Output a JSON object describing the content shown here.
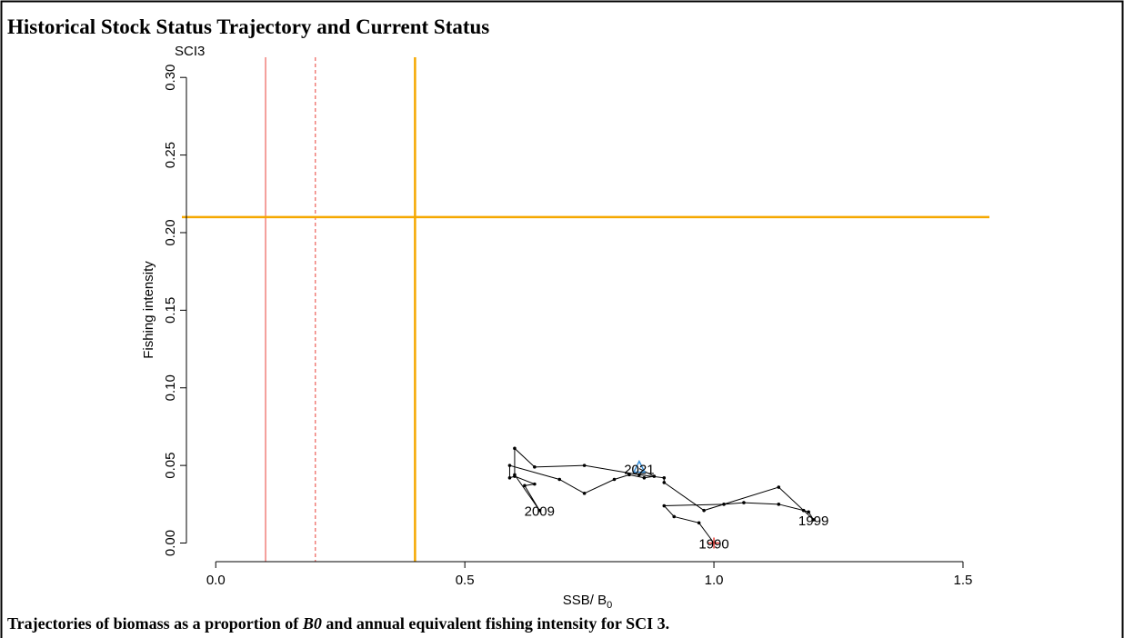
{
  "chart_data": {
    "type": "trajectory",
    "title": "Historical Stock Status Trajectory and Current Status",
    "panel_label": "SCI3",
    "x_label": "SSB/ B",
    "x_label_sub": "0",
    "y_label": "Fishing intensity",
    "caption_parts": [
      "Trajectories of biomass as a proportion of ",
      "B0",
      " and annual equivalent fishing intensity for SCI 3."
    ],
    "xlim": [
      -0.068,
      1.553
    ],
    "ylim": [
      -0.012,
      0.313
    ],
    "xticks": [
      {
        "value": 0,
        "label": "0.0"
      },
      0.5,
      {
        "value": 1,
        "label": "1.0"
      },
      1.5
    ],
    "yticks": [
      {
        "value": 0,
        "label": "0.00"
      },
      0.05,
      {
        "value": 0.1,
        "label": "0.10"
      },
      0.15,
      {
        "value": 0.2,
        "label": "0.20"
      },
      0.25,
      {
        "value": 0.3,
        "label": "0.30"
      }
    ],
    "reference_lines": [
      {
        "axis": "x",
        "value": 0.1,
        "color": "#e8413a",
        "dashed": false,
        "width": 1
      },
      {
        "axis": "x",
        "value": 0.2,
        "color": "#e8413a",
        "dashed": true,
        "width": 1
      },
      {
        "axis": "x",
        "value": 0.4,
        "color": "#f5a800",
        "dashed": false,
        "width": 2.5
      },
      {
        "axis": "y",
        "value": 0.21,
        "color": "#f5a800",
        "dashed": false,
        "width": 2.5
      }
    ],
    "series": [
      {
        "color": "#000000",
        "start_color": "#e8413a",
        "end_color": "#3a8fd8",
        "x": [
          1.0,
          0.97,
          0.92,
          0.9,
          1.02,
          1.06,
          1.13,
          1.18,
          1.19,
          1.2,
          1.13,
          0.98,
          0.9,
          0.9,
          0.85,
          0.74,
          0.64,
          0.6,
          0.6,
          0.65,
          0.62,
          0.64,
          0.6,
          0.59,
          0.59,
          0.69,
          0.74,
          0.8,
          0.83,
          0.86,
          0.88,
          0.85
        ],
        "values": [
          0.0,
          0.013,
          0.017,
          0.024,
          0.025,
          0.026,
          0.025,
          0.021,
          0.02,
          0.015,
          0.036,
          0.021,
          0.039,
          0.042,
          0.044,
          0.05,
          0.049,
          0.061,
          0.044,
          0.021,
          0.037,
          0.038,
          0.043,
          0.042,
          0.05,
          0.041,
          0.032,
          0.041,
          0.044,
          0.042,
          0.043,
          0.048
        ],
        "point_labels": [
          "1990",
          null,
          null,
          null,
          null,
          null,
          null,
          null,
          null,
          "1999",
          null,
          null,
          null,
          null,
          null,
          null,
          null,
          null,
          null,
          "2009",
          null,
          null,
          null,
          null,
          null,
          null,
          null,
          null,
          null,
          null,
          null,
          "2021"
        ]
      }
    ]
  }
}
